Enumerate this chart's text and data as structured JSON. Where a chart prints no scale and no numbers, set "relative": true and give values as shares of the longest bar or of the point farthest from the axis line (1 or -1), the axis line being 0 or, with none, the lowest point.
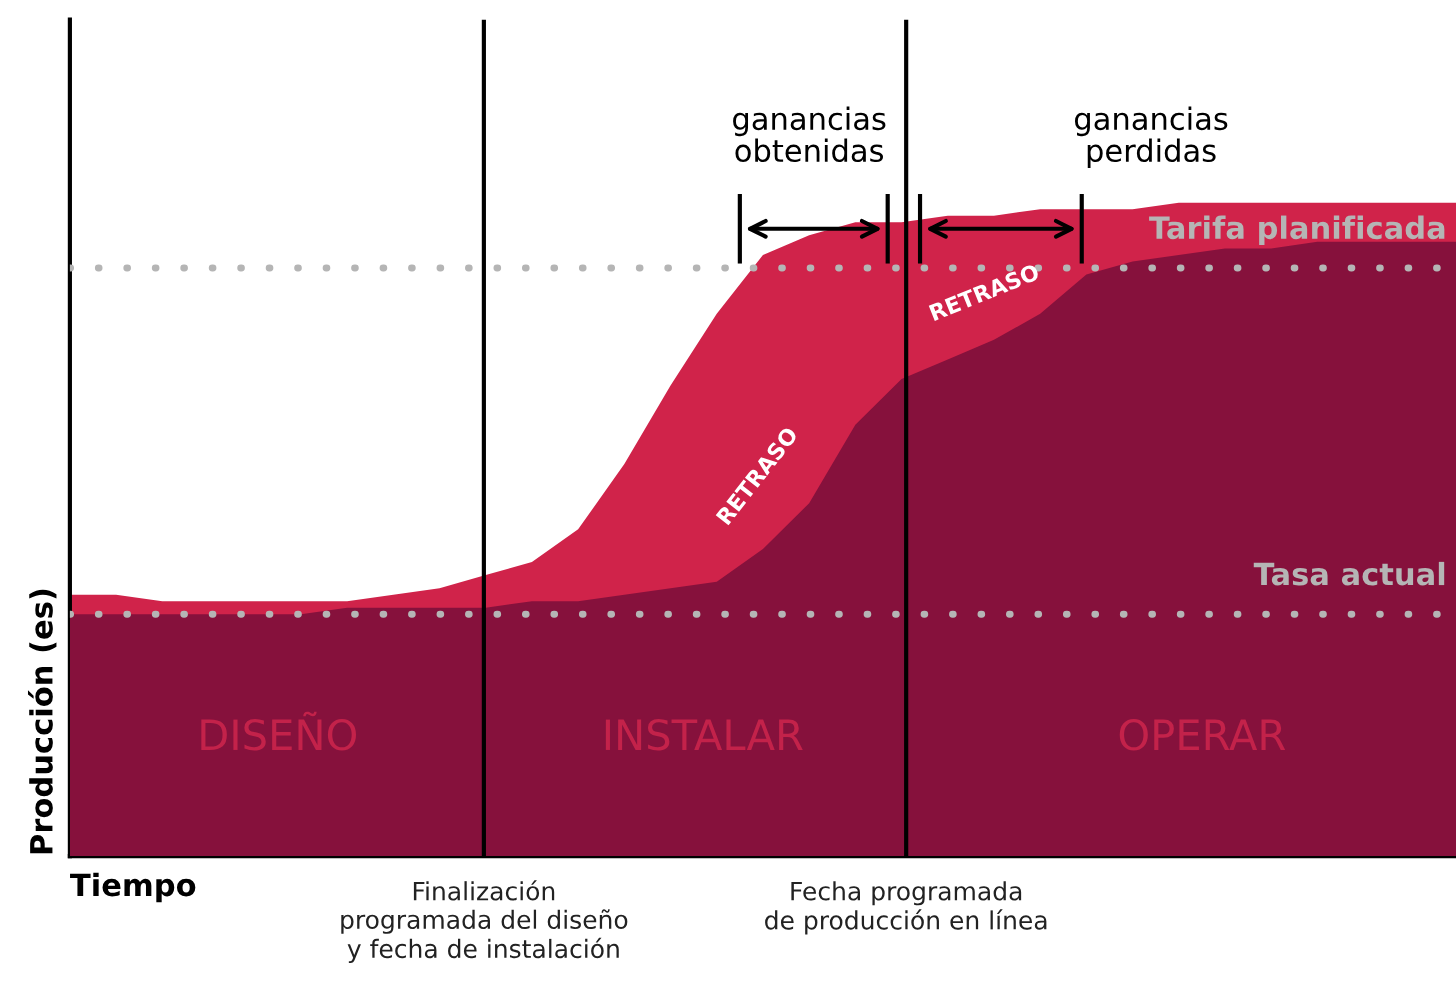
{
  "chart_data": {
    "type": "area",
    "relative": true,
    "xlabel": "Tiempo",
    "ylabel": "Producción (es)",
    "categories": [
      null,
      null,
      null,
      null,
      null,
      null,
      null,
      null,
      null,
      null,
      null,
      null,
      null,
      null,
      null,
      null,
      null,
      null,
      null,
      null,
      null,
      null,
      null,
      null,
      null,
      null,
      null,
      null,
      null,
      null,
      null
    ],
    "series": [
      {
        "color": "#d0234a",
        "values": [
          0.4,
          0.4,
          0.39,
          0.39,
          0.39,
          0.39,
          0.39,
          0.4,
          0.41,
          0.43,
          0.45,
          0.5,
          0.6,
          0.72,
          0.83,
          0.92,
          0.95,
          0.97,
          0.97,
          0.98,
          0.98,
          0.99,
          0.99,
          0.99,
          1.0,
          1.0,
          1.0,
          1.0,
          1.0,
          1.0,
          1.0
        ]
      },
      {
        "color": "#86113c",
        "values": [
          0.37,
          0.37,
          0.37,
          0.37,
          0.37,
          0.37,
          0.38,
          0.38,
          0.38,
          0.38,
          0.39,
          0.39,
          0.4,
          0.41,
          0.42,
          0.47,
          0.54,
          0.66,
          0.73,
          0.76,
          0.79,
          0.83,
          0.89,
          0.91,
          0.92,
          0.93,
          0.93,
          0.94,
          0.94,
          0.94,
          0.94
        ]
      }
    ],
    "ref_lines": [
      {
        "axis": "y",
        "value": 0.9,
        "label": "Tarifa planificada",
        "color": "#b5b5b5",
        "line_style": "dotted"
      },
      {
        "axis": "y",
        "value": 0.37,
        "label": "Tasa actual",
        "color": "#b5b5b5",
        "line_style": "dotted"
      }
    ],
    "annotations": [
      "DISEÑO",
      "INSTALAR",
      "OPERAR",
      "RETRASO",
      "RETRASO",
      "ganancias\nobtenidas",
      "ganancias\nperdidas",
      "Finalización\nprogramada del diseño\ny fecha de instalación",
      "Fecha programada\nde producción en línea"
    ]
  }
}
